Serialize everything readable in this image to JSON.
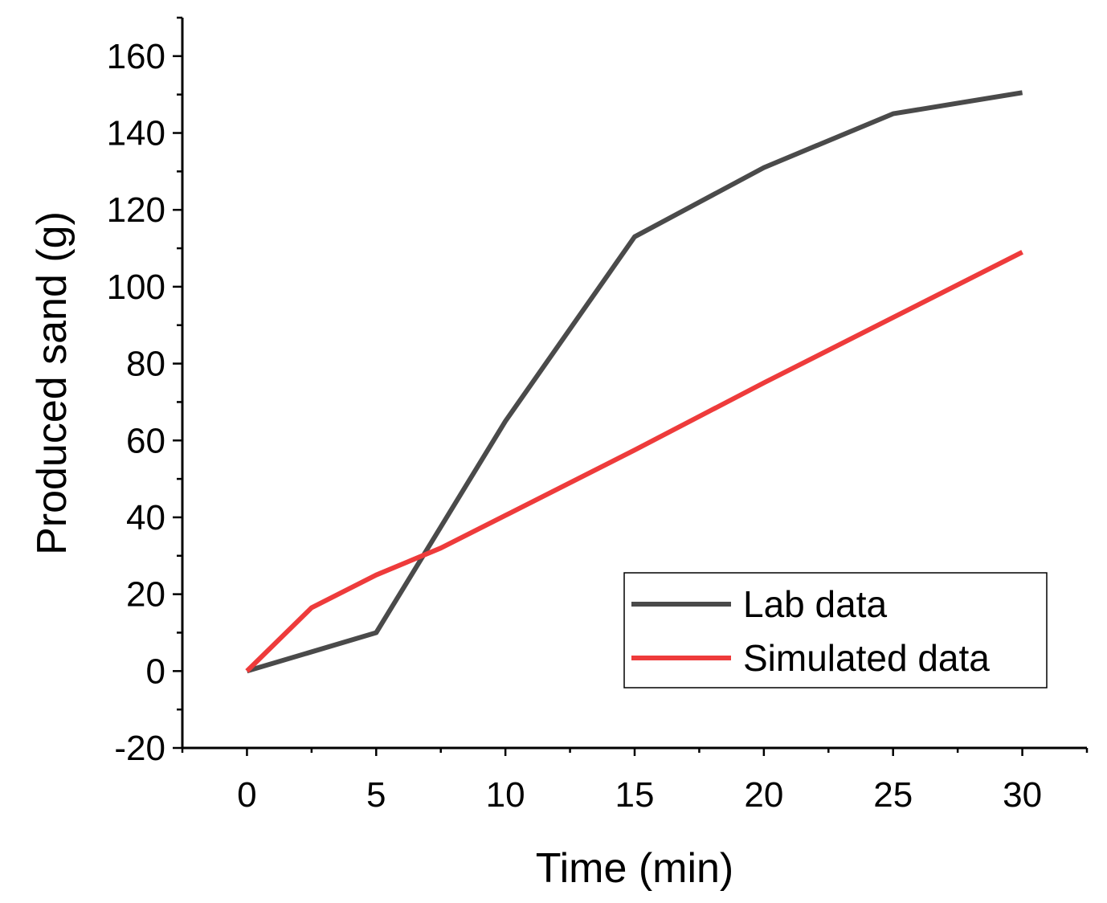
{
  "chart_data": {
    "type": "line",
    "title": "",
    "xlabel": "Time (min)",
    "ylabel": "Produced sand (g)",
    "xlim": [
      -2.5,
      32.5
    ],
    "ylim": [
      -20,
      170
    ],
    "x_ticks": [
      0,
      5,
      10,
      15,
      20,
      25,
      30
    ],
    "y_ticks": [
      -20,
      0,
      20,
      40,
      60,
      80,
      100,
      120,
      140,
      160
    ],
    "grid": false,
    "legend_position": "bottom-right",
    "series": [
      {
        "name": "Lab data",
        "color": "#4a4a4a",
        "points": [
          [
            0,
            0
          ],
          [
            5,
            10
          ],
          [
            10,
            65
          ],
          [
            15,
            113
          ],
          [
            20,
            131
          ],
          [
            25,
            145
          ],
          [
            30,
            150.5
          ]
        ]
      },
      {
        "name": "Simulated data",
        "color": "#ee3b3b",
        "points": [
          [
            0,
            0
          ],
          [
            2.5,
            16.5
          ],
          [
            5,
            25
          ],
          [
            7.5,
            32
          ],
          [
            10,
            40.5
          ],
          [
            15,
            57.5
          ],
          [
            20,
            75
          ],
          [
            25,
            92
          ],
          [
            30,
            109
          ]
        ]
      }
    ]
  }
}
